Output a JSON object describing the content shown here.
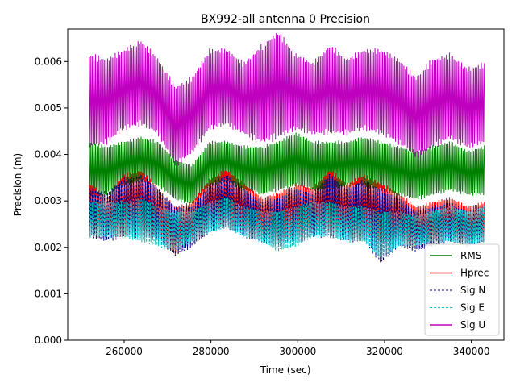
{
  "chart_data": {
    "type": "line",
    "title": "BX992-all antenna 0 Precision",
    "xlabel": "Time (sec)",
    "ylabel": "Precision (m)",
    "xlim": [
      247000,
      347500
    ],
    "ylim": [
      0,
      0.0067
    ],
    "xticks": [
      260000,
      280000,
      300000,
      320000,
      340000
    ],
    "xtick_labels": [
      "260000",
      "280000",
      "300000",
      "320000",
      "340000"
    ],
    "yticks": [
      0,
      0.001,
      0.002,
      0.003,
      0.004,
      0.005,
      0.006
    ],
    "ytick_labels": [
      "0.000",
      "0.001",
      "0.002",
      "0.003",
      "0.004",
      "0.005",
      "0.006"
    ],
    "grid": false,
    "legend_position": "lower-right",
    "x": [
      252000,
      256000,
      260000,
      264000,
      268000,
      272000,
      276000,
      280000,
      284000,
      288000,
      292000,
      296000,
      300000,
      304000,
      308000,
      312000,
      316000,
      320000,
      324000,
      328000,
      332000,
      336000,
      340000,
      343000
    ],
    "series": [
      {
        "name": "RMS",
        "color": "#008000",
        "style": "solid",
        "low": [
          0.003,
          0.0031,
          0.0033,
          0.0034,
          0.0033,
          0.003,
          0.0029,
          0.0033,
          0.0034,
          0.0032,
          0.0031,
          0.0032,
          0.0033,
          0.0032,
          0.0032,
          0.0033,
          0.0033,
          0.0032,
          0.0031,
          0.003,
          0.0031,
          0.0032,
          0.0031,
          0.0031
        ],
        "high": [
          0.0043,
          0.0042,
          0.0043,
          0.0044,
          0.0043,
          0.0039,
          0.0038,
          0.0043,
          0.0043,
          0.0042,
          0.0042,
          0.0043,
          0.0045,
          0.0043,
          0.0043,
          0.0043,
          0.0044,
          0.0043,
          0.0042,
          0.0041,
          0.0042,
          0.0043,
          0.0041,
          0.0042
        ]
      },
      {
        "name": "Hprec",
        "color": "#ff0000",
        "style": "solid",
        "low": [
          0.0024,
          0.0022,
          0.0022,
          0.0023,
          0.0022,
          0.0018,
          0.0021,
          0.0024,
          0.0025,
          0.0023,
          0.0022,
          0.0021,
          0.0022,
          0.0023,
          0.0023,
          0.0022,
          0.0022,
          0.0021,
          0.0021,
          0.002,
          0.0021,
          0.0022,
          0.0021,
          0.0022
        ],
        "high": [
          0.0034,
          0.0031,
          0.0036,
          0.0037,
          0.0033,
          0.0029,
          0.003,
          0.0035,
          0.0037,
          0.0034,
          0.0031,
          0.0032,
          0.0034,
          0.0033,
          0.0037,
          0.0034,
          0.0036,
          0.0034,
          0.0032,
          0.0029,
          0.003,
          0.0031,
          0.0029,
          0.003
        ]
      },
      {
        "name": "Sig N",
        "color": "#000080",
        "style": "dashed",
        "low": [
          0.0022,
          0.0021,
          0.0022,
          0.0022,
          0.0021,
          0.0018,
          0.002,
          0.0023,
          0.0024,
          0.0022,
          0.0021,
          0.002,
          0.0021,
          0.0022,
          0.0022,
          0.0021,
          0.0021,
          0.0016,
          0.002,
          0.0019,
          0.002,
          0.0021,
          0.002,
          0.0021
        ],
        "high": [
          0.0033,
          0.0032,
          0.0035,
          0.0036,
          0.0033,
          0.0029,
          0.0029,
          0.0034,
          0.0036,
          0.0033,
          0.003,
          0.0031,
          0.0033,
          0.0032,
          0.0036,
          0.0033,
          0.0035,
          0.0033,
          0.0031,
          0.0028,
          0.0029,
          0.003,
          0.0028,
          0.0029
        ]
      },
      {
        "name": "Sig E",
        "color": "#00bfbf",
        "style": "dashed",
        "low": [
          0.0022,
          0.0022,
          0.0022,
          0.0021,
          0.002,
          0.0019,
          0.0021,
          0.0023,
          0.0024,
          0.0022,
          0.0021,
          0.0019,
          0.002,
          0.0022,
          0.0022,
          0.0021,
          0.0021,
          0.0017,
          0.002,
          0.002,
          0.0021,
          0.0021,
          0.002,
          0.0021
        ],
        "high": [
          0.003,
          0.003,
          0.003,
          0.0031,
          0.0029,
          0.0028,
          0.0028,
          0.003,
          0.0031,
          0.0029,
          0.0028,
          0.0028,
          0.0029,
          0.003,
          0.003,
          0.0029,
          0.0029,
          0.0028,
          0.0028,
          0.0027,
          0.0028,
          0.0029,
          0.0028,
          0.0029
        ]
      },
      {
        "name": "Sig U",
        "color": "#bf00bf",
        "style": "solid",
        "low": [
          0.0041,
          0.0042,
          0.0045,
          0.0046,
          0.0044,
          0.0037,
          0.004,
          0.0045,
          0.0046,
          0.0044,
          0.0042,
          0.0043,
          0.0045,
          0.0044,
          0.0044,
          0.0044,
          0.0045,
          0.0044,
          0.0042,
          0.0039,
          0.0041,
          0.0043,
          0.0041,
          0.0042
        ],
        "high": [
          0.0062,
          0.0061,
          0.0063,
          0.0065,
          0.0061,
          0.0055,
          0.0057,
          0.0063,
          0.0063,
          0.006,
          0.0064,
          0.0067,
          0.0062,
          0.006,
          0.0064,
          0.0061,
          0.0063,
          0.0063,
          0.0061,
          0.0057,
          0.0061,
          0.0062,
          0.0059,
          0.006
        ]
      }
    ]
  }
}
